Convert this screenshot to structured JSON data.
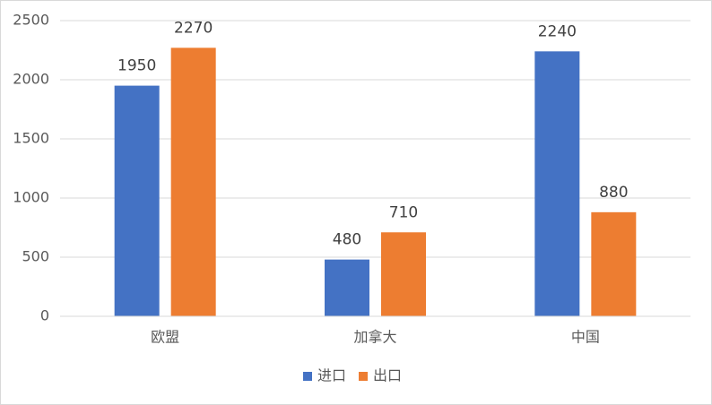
{
  "chart_data": {
    "type": "bar",
    "categories": [
      "欧盟",
      "加拿大",
      "中国"
    ],
    "series": [
      {
        "name": "进口",
        "color": "#4472c4",
        "values": [
          1950,
          480,
          2240
        ]
      },
      {
        "name": "出口",
        "color": "#ed7d31",
        "values": [
          2270,
          710,
          880
        ]
      }
    ],
    "ylim": [
      0,
      2500
    ],
    "yticks": [
      0,
      500,
      1000,
      1500,
      2000,
      2500
    ],
    "grid": true,
    "legend": "bottom"
  }
}
